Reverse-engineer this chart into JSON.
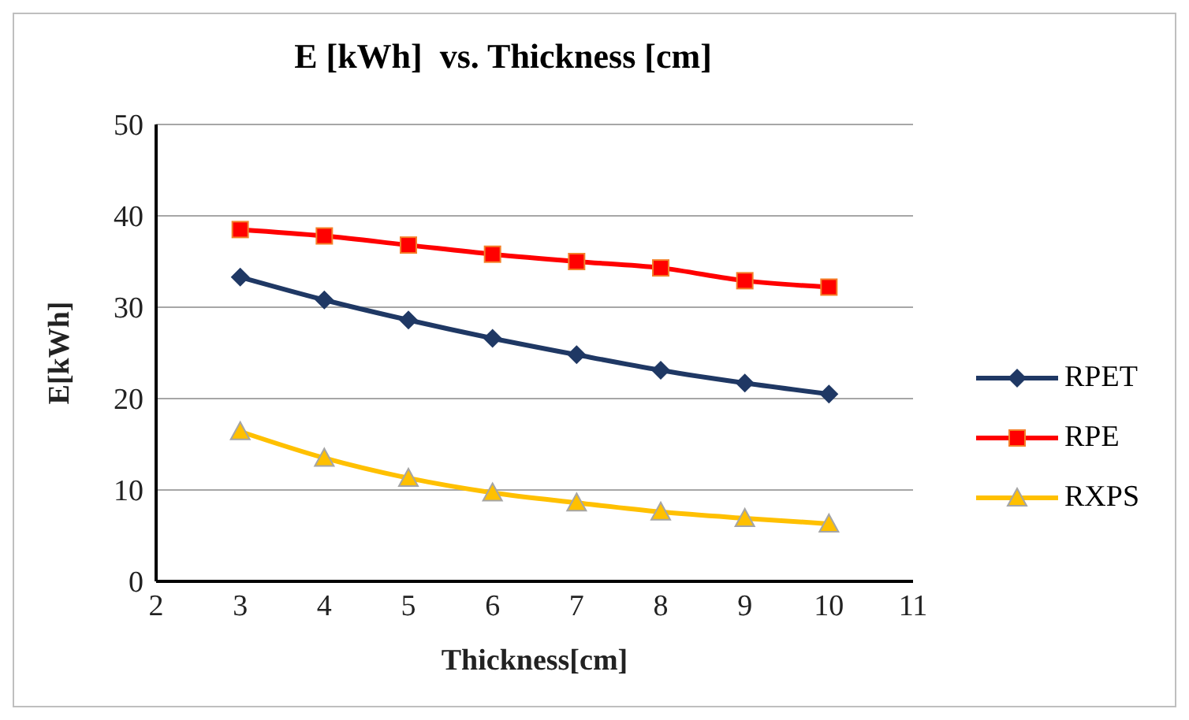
{
  "chart_data": {
    "type": "line",
    "title": "E [kWh]  vs. Thickness [cm]",
    "xlabel": "Thickness[cm]",
    "ylabel": "E[kWh]",
    "x": [
      3,
      4,
      5,
      6,
      7,
      8,
      9,
      10
    ],
    "series": [
      {
        "name": "RPET",
        "color": "#1f3864",
        "marker": "diamond",
        "values": [
          33.3,
          30.8,
          28.6,
          26.6,
          24.8,
          23.1,
          21.7,
          20.5
        ]
      },
      {
        "name": "RPE",
        "color": "#ff0000",
        "marker": "square",
        "values": [
          38.5,
          37.8,
          36.8,
          35.8,
          35.0,
          34.3,
          32.9,
          32.2
        ]
      },
      {
        "name": "RXPS",
        "color": "#ffc000",
        "marker": "triangle",
        "values": [
          16.4,
          13.5,
          11.3,
          9.7,
          8.6,
          7.6,
          6.9,
          6.3
        ]
      }
    ],
    "xlim": [
      2,
      11
    ],
    "xticks": [
      2,
      3,
      4,
      5,
      6,
      7,
      8,
      9,
      10,
      11
    ],
    "ylim": [
      0,
      50
    ],
    "yticks": [
      0,
      10,
      20,
      30,
      40,
      50
    ],
    "grid": "y",
    "legend": "right"
  }
}
